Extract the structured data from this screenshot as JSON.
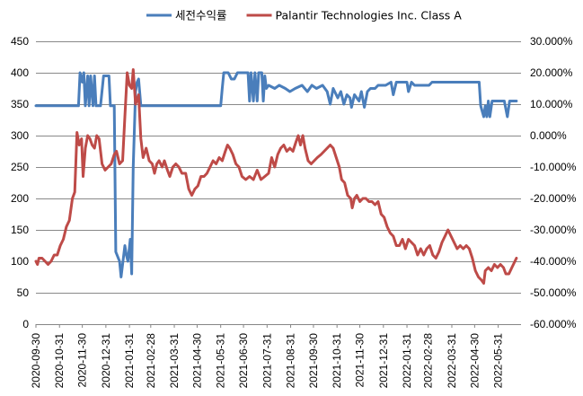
{
  "chart_data": {
    "type": "line",
    "title": "",
    "grid": "horizontal",
    "legend_position": "top",
    "x_ticks": [
      "2020-09-30",
      "2020-10-31",
      "2020-11-30",
      "2020-12-31",
      "2021-01-31",
      "2021-02-28",
      "2021-03-31",
      "2021-04-30",
      "2021-05-31",
      "2021-06-30",
      "2021-07-31",
      "2021-08-31",
      "2021-09-30",
      "2021-10-31",
      "2021-11-30",
      "2021-12-31",
      "2022-01-31",
      "2022-02-28",
      "2022-03-31",
      "2022-04-30",
      "2022-05-31"
    ],
    "x_range": [
      "2020-09-30",
      "2022-06-30"
    ],
    "y_left": {
      "min": 0,
      "max": 450,
      "step": 50,
      "tick_labels": [
        "0",
        "50",
        "100",
        "150",
        "200",
        "250",
        "300",
        "350",
        "400",
        "450"
      ]
    },
    "y_right": {
      "min": -0.6,
      "max": 0.3,
      "step": 0.1,
      "tick_labels": [
        "-60.000%",
        "-50.000%",
        "-40.000%",
        "-30.000%",
        "-20.000%",
        "-10.000%",
        "0.000%",
        "10.000%",
        "20.000%",
        "30.000%"
      ]
    },
    "series": [
      {
        "name": "세전수익률",
        "axis": "right",
        "color": "#4A7EBB",
        "points": [
          [
            "2020-09-30",
            0.095
          ],
          [
            "2020-11-25",
            0.095
          ],
          [
            "2020-11-27",
            0.2
          ],
          [
            "2020-11-30",
            0.17
          ],
          [
            "2020-12-02",
            0.2
          ],
          [
            "2020-12-04",
            0.095
          ],
          [
            "2020-12-07",
            0.19
          ],
          [
            "2020-12-09",
            0.095
          ],
          [
            "2020-12-11",
            0.19
          ],
          [
            "2020-12-14",
            0.095
          ],
          [
            "2020-12-16",
            0.19
          ],
          [
            "2020-12-18",
            0.095
          ],
          [
            "2020-12-24",
            0.095
          ],
          [
            "2020-12-28",
            0.19
          ],
          [
            "2021-01-04",
            0.19
          ],
          [
            "2021-01-06",
            0.095
          ],
          [
            "2021-01-11",
            0.095
          ],
          [
            "2021-01-13",
            -0.37
          ],
          [
            "2021-01-18",
            -0.4
          ],
          [
            "2021-01-20",
            -0.45
          ],
          [
            "2021-01-25",
            -0.35
          ],
          [
            "2021-01-27",
            -0.38
          ],
          [
            "2021-01-29",
            -0.4
          ],
          [
            "2021-02-01",
            -0.33
          ],
          [
            "2021-02-03",
            -0.44
          ],
          [
            "2021-02-05",
            -0.1
          ],
          [
            "2021-02-08",
            0.14
          ],
          [
            "2021-02-10",
            0.17
          ],
          [
            "2021-02-12",
            0.18
          ],
          [
            "2021-02-15",
            0.095
          ],
          [
            "2021-02-18",
            0.095
          ],
          [
            "2021-05-31",
            0.095
          ],
          [
            "2021-06-02",
            0.15
          ],
          [
            "2021-06-04",
            0.2
          ],
          [
            "2021-06-10",
            0.2
          ],
          [
            "2021-06-14",
            0.18
          ],
          [
            "2021-06-18",
            0.18
          ],
          [
            "2021-06-22",
            0.2
          ],
          [
            "2021-07-06",
            0.2
          ],
          [
            "2021-07-08",
            0.11
          ],
          [
            "2021-07-10",
            0.2
          ],
          [
            "2021-07-13",
            0.11
          ],
          [
            "2021-07-15",
            0.2
          ],
          [
            "2021-07-18",
            0.11
          ],
          [
            "2021-07-20",
            0.2
          ],
          [
            "2021-07-24",
            0.2
          ],
          [
            "2021-07-26",
            0.11
          ],
          [
            "2021-07-28",
            0.19
          ],
          [
            "2021-07-30",
            0.15
          ],
          [
            "2021-08-02",
            0.16
          ],
          [
            "2021-08-10",
            0.15
          ],
          [
            "2021-08-16",
            0.16
          ],
          [
            "2021-08-24",
            0.15
          ],
          [
            "2021-08-30",
            0.14
          ],
          [
            "2021-09-06",
            0.15
          ],
          [
            "2021-09-15",
            0.16
          ],
          [
            "2021-09-22",
            0.14
          ],
          [
            "2021-09-28",
            0.16
          ],
          [
            "2021-10-04",
            0.15
          ],
          [
            "2021-10-12",
            0.16
          ],
          [
            "2021-10-18",
            0.14
          ],
          [
            "2021-10-22",
            0.1
          ],
          [
            "2021-10-26",
            0.15
          ],
          [
            "2021-11-01",
            0.12
          ],
          [
            "2021-11-05",
            0.14
          ],
          [
            "2021-11-09",
            0.1
          ],
          [
            "2021-11-13",
            0.13
          ],
          [
            "2021-11-17",
            0.12
          ],
          [
            "2021-11-19",
            0.09
          ],
          [
            "2021-11-23",
            0.13
          ],
          [
            "2021-11-29",
            0.11
          ],
          [
            "2021-12-02",
            0.14
          ],
          [
            "2021-12-06",
            0.09
          ],
          [
            "2021-12-10",
            0.14
          ],
          [
            "2021-12-14",
            0.15
          ],
          [
            "2021-12-20",
            0.15
          ],
          [
            "2021-12-24",
            0.16
          ],
          [
            "2022-01-03",
            0.16
          ],
          [
            "2022-01-10",
            0.17
          ],
          [
            "2022-01-13",
            0.13
          ],
          [
            "2022-01-17",
            0.17
          ],
          [
            "2022-01-31",
            0.17
          ],
          [
            "2022-02-02",
            0.14
          ],
          [
            "2022-02-06",
            0.17
          ],
          [
            "2022-02-10",
            0.16
          ],
          [
            "2022-03-01",
            0.16
          ],
          [
            "2022-03-05",
            0.17
          ],
          [
            "2022-05-06",
            0.17
          ],
          [
            "2022-05-08",
            0.095
          ],
          [
            "2022-05-12",
            0.06
          ],
          [
            "2022-05-14",
            0.095
          ],
          [
            "2022-05-16",
            0.06
          ],
          [
            "2022-05-18",
            0.11
          ],
          [
            "2022-05-20",
            0.06
          ],
          [
            "2022-05-23",
            0.11
          ],
          [
            "2022-06-08",
            0.11
          ],
          [
            "2022-06-12",
            0.06
          ],
          [
            "2022-06-15",
            0.11
          ],
          [
            "2022-06-24",
            0.11
          ]
        ]
      },
      {
        "name": "Palantir Technologies Inc. Class A",
        "axis": "right",
        "color": "#BE4B48",
        "points": [
          [
            "2020-09-30",
            -0.4
          ],
          [
            "2020-10-02",
            -0.41
          ],
          [
            "2020-10-04",
            -0.39
          ],
          [
            "2020-10-08",
            -0.39
          ],
          [
            "2020-10-12",
            -0.4
          ],
          [
            "2020-10-16",
            -0.41
          ],
          [
            "2020-10-20",
            -0.4
          ],
          [
            "2020-10-24",
            -0.38
          ],
          [
            "2020-10-28",
            -0.38
          ],
          [
            "2020-11-01",
            -0.35
          ],
          [
            "2020-11-05",
            -0.33
          ],
          [
            "2020-11-09",
            -0.29
          ],
          [
            "2020-11-13",
            -0.27
          ],
          [
            "2020-11-17",
            -0.2
          ],
          [
            "2020-11-20",
            -0.18
          ],
          [
            "2020-11-23",
            0.01
          ],
          [
            "2020-11-26",
            -0.03
          ],
          [
            "2020-11-29",
            -0.01
          ],
          [
            "2020-12-01",
            -0.13
          ],
          [
            "2020-12-04",
            -0.04
          ],
          [
            "2020-12-07",
            0.0
          ],
          [
            "2020-12-10",
            -0.01
          ],
          [
            "2020-12-13",
            -0.03
          ],
          [
            "2020-12-16",
            -0.04
          ],
          [
            "2020-12-19",
            0.0
          ],
          [
            "2020-12-22",
            -0.01
          ],
          [
            "2020-12-26",
            -0.09
          ],
          [
            "2020-12-30",
            -0.11
          ],
          [
            "2021-01-03",
            -0.1
          ],
          [
            "2021-01-07",
            -0.09
          ],
          [
            "2021-01-11",
            -0.06
          ],
          [
            "2021-01-14",
            -0.05
          ],
          [
            "2021-01-18",
            -0.09
          ],
          [
            "2021-01-22",
            -0.08
          ],
          [
            "2021-01-25",
            0.06
          ],
          [
            "2021-01-28",
            0.2
          ],
          [
            "2021-01-31",
            0.16
          ],
          [
            "2021-02-03",
            0.15
          ],
          [
            "2021-02-05",
            0.21
          ],
          [
            "2021-02-08",
            0.1
          ],
          [
            "2021-02-12",
            0.13
          ],
          [
            "2021-02-15",
            -0.01
          ],
          [
            "2021-02-18",
            -0.07
          ],
          [
            "2021-02-22",
            -0.04
          ],
          [
            "2021-02-26",
            -0.08
          ],
          [
            "2021-03-02",
            -0.09
          ],
          [
            "2021-03-05",
            -0.12
          ],
          [
            "2021-03-08",
            -0.09
          ],
          [
            "2021-03-11",
            -0.08
          ],
          [
            "2021-03-15",
            -0.1
          ],
          [
            "2021-03-18",
            -0.08
          ],
          [
            "2021-03-22",
            -0.11
          ],
          [
            "2021-03-25",
            -0.13
          ],
          [
            "2021-03-29",
            -0.1
          ],
          [
            "2021-04-02",
            -0.09
          ],
          [
            "2021-04-06",
            -0.1
          ],
          [
            "2021-04-10",
            -0.12
          ],
          [
            "2021-04-15",
            -0.12
          ],
          [
            "2021-04-19",
            -0.17
          ],
          [
            "2021-04-23",
            -0.19
          ],
          [
            "2021-04-27",
            -0.17
          ],
          [
            "2021-05-01",
            -0.16
          ],
          [
            "2021-05-05",
            -0.13
          ],
          [
            "2021-05-09",
            -0.13
          ],
          [
            "2021-05-13",
            -0.12
          ],
          [
            "2021-05-17",
            -0.1
          ],
          [
            "2021-05-21",
            -0.08
          ],
          [
            "2021-05-25",
            -0.09
          ],
          [
            "2021-05-29",
            -0.07
          ],
          [
            "2021-06-02",
            -0.08
          ],
          [
            "2021-06-06",
            -0.05
          ],
          [
            "2021-06-09",
            -0.03
          ],
          [
            "2021-06-12",
            -0.04
          ],
          [
            "2021-06-16",
            -0.06
          ],
          [
            "2021-06-20",
            -0.09
          ],
          [
            "2021-06-24",
            -0.1
          ],
          [
            "2021-06-28",
            -0.13
          ],
          [
            "2021-07-03",
            -0.14
          ],
          [
            "2021-07-08",
            -0.13
          ],
          [
            "2021-07-13",
            -0.14
          ],
          [
            "2021-07-18",
            -0.11
          ],
          [
            "2021-07-23",
            -0.14
          ],
          [
            "2021-07-28",
            -0.13
          ],
          [
            "2021-08-02",
            -0.12
          ],
          [
            "2021-08-06",
            -0.07
          ],
          [
            "2021-08-10",
            -0.1
          ],
          [
            "2021-08-14",
            -0.06
          ],
          [
            "2021-08-18",
            -0.04
          ],
          [
            "2021-08-22",
            -0.03
          ],
          [
            "2021-08-26",
            -0.05
          ],
          [
            "2021-08-30",
            -0.04
          ],
          [
            "2021-09-03",
            -0.05
          ],
          [
            "2021-09-07",
            -0.02
          ],
          [
            "2021-09-10",
            0.0
          ],
          [
            "2021-09-13",
            -0.03
          ],
          [
            "2021-09-16",
            0.0
          ],
          [
            "2021-09-19",
            -0.04
          ],
          [
            "2021-09-23",
            -0.08
          ],
          [
            "2021-09-27",
            -0.09
          ],
          [
            "2021-10-01",
            -0.08
          ],
          [
            "2021-10-05",
            -0.07
          ],
          [
            "2021-10-10",
            -0.06
          ],
          [
            "2021-10-14",
            -0.05
          ],
          [
            "2021-10-18",
            -0.04
          ],
          [
            "2021-10-22",
            -0.03
          ],
          [
            "2021-10-26",
            -0.04
          ],
          [
            "2021-10-30",
            -0.07
          ],
          [
            "2021-11-03",
            -0.1
          ],
          [
            "2021-11-06",
            -0.14
          ],
          [
            "2021-11-10",
            -0.15
          ],
          [
            "2021-11-14",
            -0.19
          ],
          [
            "2021-11-18",
            -0.2
          ],
          [
            "2021-11-20",
            -0.23
          ],
          [
            "2021-11-23",
            -0.2
          ],
          [
            "2021-11-26",
            -0.19
          ],
          [
            "2021-11-30",
            -0.21
          ],
          [
            "2021-12-04",
            -0.2
          ],
          [
            "2021-12-08",
            -0.2
          ],
          [
            "2021-12-12",
            -0.21
          ],
          [
            "2021-12-16",
            -0.21
          ],
          [
            "2021-12-20",
            -0.22
          ],
          [
            "2021-12-24",
            -0.21
          ],
          [
            "2021-12-28",
            -0.25
          ],
          [
            "2022-01-01",
            -0.26
          ],
          [
            "2022-01-05",
            -0.29
          ],
          [
            "2022-01-09",
            -0.31
          ],
          [
            "2022-01-13",
            -0.32
          ],
          [
            "2022-01-17",
            -0.35
          ],
          [
            "2022-01-21",
            -0.35
          ],
          [
            "2022-01-25",
            -0.33
          ],
          [
            "2022-01-29",
            -0.36
          ],
          [
            "2022-02-02",
            -0.33
          ],
          [
            "2022-02-06",
            -0.34
          ],
          [
            "2022-02-10",
            -0.35
          ],
          [
            "2022-02-14",
            -0.38
          ],
          [
            "2022-02-18",
            -0.36
          ],
          [
            "2022-02-22",
            -0.38
          ],
          [
            "2022-02-26",
            -0.36
          ],
          [
            "2022-03-02",
            -0.35
          ],
          [
            "2022-03-06",
            -0.38
          ],
          [
            "2022-03-10",
            -0.39
          ],
          [
            "2022-03-14",
            -0.37
          ],
          [
            "2022-03-18",
            -0.34
          ],
          [
            "2022-03-22",
            -0.32
          ],
          [
            "2022-03-26",
            -0.3
          ],
          [
            "2022-03-30",
            -0.32
          ],
          [
            "2022-04-03",
            -0.34
          ],
          [
            "2022-04-07",
            -0.36
          ],
          [
            "2022-04-11",
            -0.35
          ],
          [
            "2022-04-15",
            -0.36
          ],
          [
            "2022-04-19",
            -0.35
          ],
          [
            "2022-04-23",
            -0.36
          ],
          [
            "2022-04-27",
            -0.39
          ],
          [
            "2022-05-01",
            -0.43
          ],
          [
            "2022-05-05",
            -0.45
          ],
          [
            "2022-05-09",
            -0.46
          ],
          [
            "2022-05-12",
            -0.47
          ],
          [
            "2022-05-14",
            -0.43
          ],
          [
            "2022-05-18",
            -0.42
          ],
          [
            "2022-05-22",
            -0.43
          ],
          [
            "2022-05-26",
            -0.41
          ],
          [
            "2022-05-30",
            -0.42
          ],
          [
            "2022-06-03",
            -0.41
          ],
          [
            "2022-06-07",
            -0.42
          ],
          [
            "2022-06-10",
            -0.44
          ],
          [
            "2022-06-14",
            -0.44
          ],
          [
            "2022-06-18",
            -0.42
          ],
          [
            "2022-06-22",
            -0.4
          ],
          [
            "2022-06-24",
            -0.39
          ]
        ]
      }
    ]
  }
}
